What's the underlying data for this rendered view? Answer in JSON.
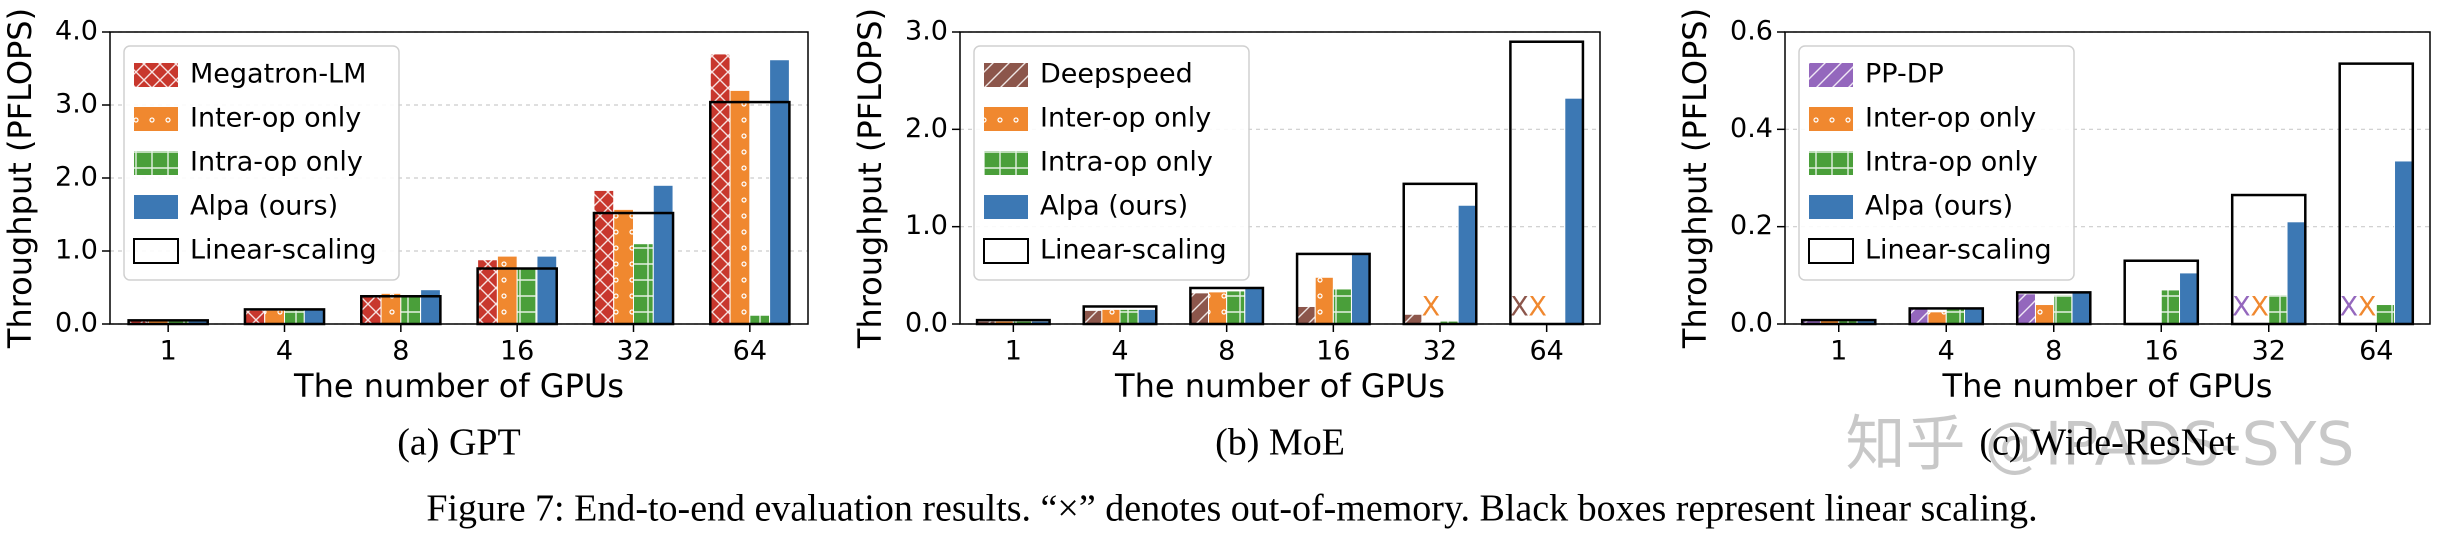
{
  "chart_data": [
    {
      "type": "bar",
      "caption": "(a) GPT",
      "ylabel": "Throughput (PFLOPS)",
      "xlabel": "The number of GPUs",
      "categories": [
        "1",
        "4",
        "8",
        "16",
        "32",
        "64"
      ],
      "ylim": [
        0,
        4
      ],
      "yticks": [
        {
          "value": 0,
          "label": "0.0"
        },
        {
          "value": 1,
          "label": "1.0"
        },
        {
          "value": 2,
          "label": "2.0"
        },
        {
          "value": 3,
          "label": "3.0"
        },
        {
          "value": 4,
          "label": "4.0"
        }
      ],
      "grid": true,
      "legend": "upper left",
      "oom_label": "X",
      "series": [
        {
          "name": "Megatron-LM",
          "color": "#c8372d",
          "hatch": "x",
          "values": [
            0.05,
            0.19,
            0.38,
            0.88,
            1.83,
            3.7
          ]
        },
        {
          "name": "Inter-op only",
          "color": "#f0882f",
          "hatch": "dots",
          "values": [
            0.05,
            0.19,
            0.42,
            0.93,
            1.57,
            3.2
          ]
        },
        {
          "name": "Intra-op only",
          "color": "#4a9f3a",
          "hatch": "grid",
          "values": [
            0.05,
            0.2,
            0.4,
            0.76,
            1.1,
            0.12
          ]
        },
        {
          "name": "Alpa (ours)",
          "color": "#3c78b4",
          "hatch": "none",
          "values": [
            0.05,
            0.2,
            0.47,
            0.93,
            1.9,
            3.62
          ]
        },
        {
          "name": "Linear-scaling",
          "color": "#000000",
          "style": "outline",
          "values": [
            0.05,
            0.2,
            0.38,
            0.76,
            1.52,
            3.04
          ]
        }
      ]
    },
    {
      "type": "bar",
      "caption": "(b) MoE",
      "ylabel": "Throughput (PFLOPS)",
      "xlabel": "The number of GPUs",
      "categories": [
        "1",
        "4",
        "8",
        "16",
        "32",
        "64"
      ],
      "ylim": [
        0,
        3
      ],
      "yticks": [
        {
          "value": 0,
          "label": "0.0"
        },
        {
          "value": 1,
          "label": "1.0"
        },
        {
          "value": 2,
          "label": "2.0"
        },
        {
          "value": 3,
          "label": "3.0"
        }
      ],
      "grid": true,
      "legend": "upper left",
      "oom_label": "X",
      "series": [
        {
          "name": "Deepspeed",
          "color": "#8c564b",
          "hatch": "diag",
          "values": [
            0.03,
            0.14,
            0.32,
            0.18,
            0.1,
            null
          ],
          "oom": [
            false,
            false,
            false,
            false,
            false,
            true
          ]
        },
        {
          "name": "Inter-op only",
          "color": "#f0882f",
          "hatch": "dots",
          "values": [
            0.03,
            0.15,
            0.33,
            0.48,
            null,
            null
          ],
          "oom": [
            false,
            false,
            false,
            false,
            true,
            true
          ]
        },
        {
          "name": "Intra-op only",
          "color": "#4a9f3a",
          "hatch": "grid",
          "values": [
            0.03,
            0.15,
            0.34,
            0.36,
            0.03,
            null
          ]
        },
        {
          "name": "Alpa (ours)",
          "color": "#3c78b4",
          "hatch": "none",
          "values": [
            0.03,
            0.15,
            0.37,
            0.72,
            1.22,
            2.32
          ]
        },
        {
          "name": "Linear-scaling",
          "color": "#000000",
          "style": "outline",
          "values": [
            0.04,
            0.18,
            0.37,
            0.72,
            1.44,
            2.9
          ]
        }
      ]
    },
    {
      "type": "bar",
      "caption": "(c) Wide-ResNet",
      "ylabel": "Throughput (PFLOPS)",
      "xlabel": "The number of GPUs",
      "categories": [
        "1",
        "4",
        "8",
        "16",
        "32",
        "64"
      ],
      "ylim": [
        0,
        0.6
      ],
      "yticks": [
        {
          "value": 0,
          "label": "0.0"
        },
        {
          "value": 0.2,
          "label": "0.2"
        },
        {
          "value": 0.4,
          "label": "0.4"
        },
        {
          "value": 0.6,
          "label": "0.6"
        }
      ],
      "grid": true,
      "legend": "upper left",
      "oom_label": "X",
      "series": [
        {
          "name": "PP-DP",
          "color": "#9467bd",
          "hatch": "diag",
          "values": [
            0.008,
            0.032,
            0.062,
            null,
            null,
            null
          ],
          "oom": [
            false,
            false,
            false,
            false,
            true,
            true
          ]
        },
        {
          "name": "Inter-op only",
          "color": "#f0882f",
          "hatch": "dots",
          "values": [
            0.008,
            0.025,
            0.04,
            null,
            null,
            null
          ],
          "oom": [
            false,
            false,
            false,
            false,
            true,
            true
          ]
        },
        {
          "name": "Intra-op only",
          "color": "#4a9f3a",
          "hatch": "grid",
          "values": [
            0.008,
            0.032,
            0.06,
            0.07,
            0.06,
            0.04
          ]
        },
        {
          "name": "Alpa (ours)",
          "color": "#3c78b4",
          "hatch": "none",
          "values": [
            0.008,
            0.032,
            0.065,
            0.105,
            0.21,
            0.335
          ]
        },
        {
          "name": "Linear-scaling",
          "color": "#000000",
          "style": "outline",
          "values": [
            0.008,
            0.032,
            0.065,
            0.13,
            0.265,
            0.535
          ]
        }
      ]
    }
  ],
  "figure_caption": "Figure 7: End-to-end evaluation results. “×” denotes out-of-memory. Black boxes represent linear scaling.",
  "watermark": "知乎 @IPADS-SYS"
}
